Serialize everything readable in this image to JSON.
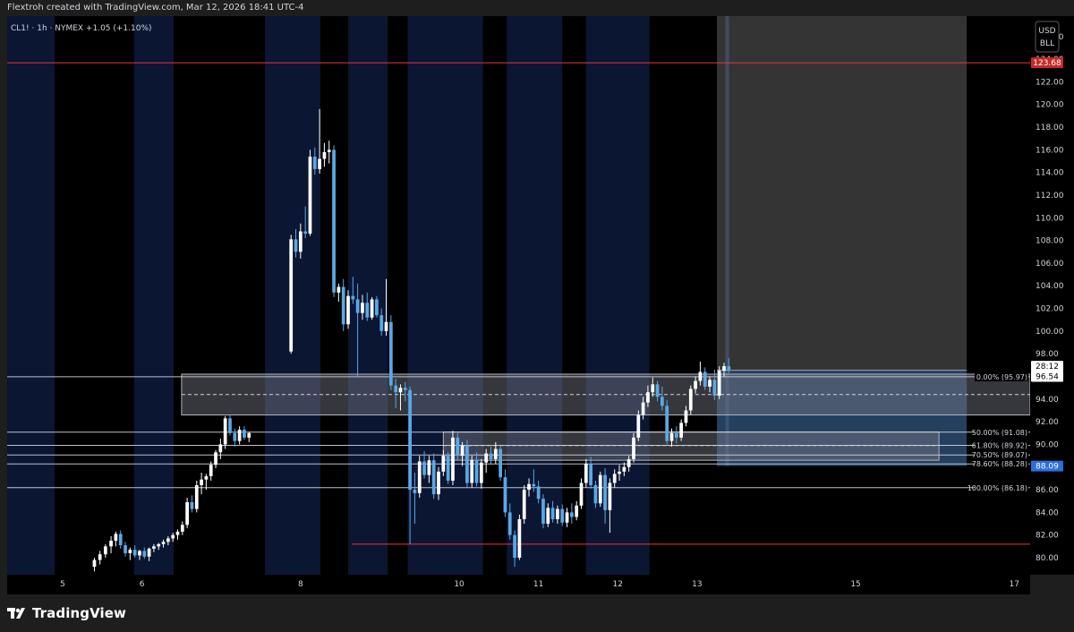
{
  "header": {
    "attribution": "Flextroh created with TradingView.com, Mar 12, 2026 18:41 UTC-4"
  },
  "legend": {
    "symbol_line": "CL1! · 1h · NYMEX +1.05 (+1.10%)"
  },
  "currency_box": {
    "currency": "USD",
    "unit": "BLL"
  },
  "brand": {
    "name": "TradingView",
    "icon": "tradingview-logo-icon"
  },
  "colors": {
    "bull": "#ffffff",
    "bear": "#5aa9e6",
    "resistance_line": "#e53935",
    "fib_line": "#d1d4dc",
    "zone_fill": "#787b86",
    "session_tint": "#0b1633",
    "projection_up": "#3a3a3a",
    "projection_down": "#2c4a6e",
    "price_tag": "#2a6fdb"
  },
  "chart_data": {
    "type": "candlestick",
    "title": "",
    "xlabel": "",
    "ylabel": "",
    "ylim": [
      78.5,
      127.8
    ],
    "x_domain": [
      4.3,
      17.2
    ],
    "x_ticks": [
      {
        "value": 5,
        "label": "5"
      },
      {
        "value": 6,
        "label": "6"
      },
      {
        "value": 8,
        "label": "8"
      },
      {
        "value": 10,
        "label": "10"
      },
      {
        "value": 11,
        "label": "11"
      },
      {
        "value": 12,
        "label": "12"
      },
      {
        "value": 13,
        "label": "13"
      },
      {
        "value": 15,
        "label": "15"
      },
      {
        "value": 17,
        "label": "17"
      }
    ],
    "y_ticks": [
      "126.00",
      "124.00",
      "122.00",
      "120.00",
      "118.00",
      "116.00",
      "114.00",
      "112.00",
      "110.00",
      "108.00",
      "106.00",
      "104.00",
      "102.00",
      "100.00",
      "98.00",
      "96.00",
      "94.00",
      "92.00",
      "90.00",
      "88.00",
      "86.00",
      "84.00",
      "82.00",
      "80.00"
    ],
    "sessions": [
      [
        4.3,
        4.9
      ],
      [
        5.9,
        6.4
      ],
      [
        7.55,
        8.25
      ],
      [
        8.6,
        9.1
      ],
      [
        9.35,
        10.3
      ],
      [
        10.6,
        11.3
      ],
      [
        11.6,
        12.4
      ]
    ],
    "candles": [
      {
        "x": 5.4,
        "o": 79.2,
        "h": 80.0,
        "l": 78.8,
        "c": 79.8
      },
      {
        "x": 5.47,
        "o": 79.8,
        "h": 80.6,
        "l": 79.4,
        "c": 80.3
      },
      {
        "x": 5.54,
        "o": 80.3,
        "h": 81.2,
        "l": 80.0,
        "c": 81.0
      },
      {
        "x": 5.61,
        "o": 81.0,
        "h": 81.9,
        "l": 80.4,
        "c": 81.5
      },
      {
        "x": 5.67,
        "o": 81.5,
        "h": 82.3,
        "l": 81.0,
        "c": 82.1
      },
      {
        "x": 5.73,
        "o": 82.1,
        "h": 82.4,
        "l": 80.8,
        "c": 81.1
      },
      {
        "x": 5.79,
        "o": 81.1,
        "h": 81.4,
        "l": 80.1,
        "c": 80.4
      },
      {
        "x": 5.85,
        "o": 80.4,
        "h": 80.9,
        "l": 79.8,
        "c": 80.7
      },
      {
        "x": 5.91,
        "o": 80.7,
        "h": 81.1,
        "l": 80.0,
        "c": 80.2
      },
      {
        "x": 5.97,
        "o": 80.2,
        "h": 80.7,
        "l": 79.8,
        "c": 80.6
      },
      {
        "x": 6.03,
        "o": 80.6,
        "h": 80.9,
        "l": 79.9,
        "c": 80.1
      },
      {
        "x": 6.09,
        "o": 80.1,
        "h": 80.9,
        "l": 79.7,
        "c": 80.8
      },
      {
        "x": 6.15,
        "o": 80.8,
        "h": 81.2,
        "l": 80.5,
        "c": 81.0
      },
      {
        "x": 6.21,
        "o": 81.0,
        "h": 81.3,
        "l": 80.7,
        "c": 81.2
      },
      {
        "x": 6.27,
        "o": 81.2,
        "h": 81.6,
        "l": 80.9,
        "c": 81.4
      },
      {
        "x": 6.33,
        "o": 81.4,
        "h": 81.9,
        "l": 81.1,
        "c": 81.7
      },
      {
        "x": 6.39,
        "o": 81.7,
        "h": 82.2,
        "l": 81.4,
        "c": 82.0
      },
      {
        "x": 6.45,
        "o": 82.0,
        "h": 82.5,
        "l": 81.6,
        "c": 82.3
      },
      {
        "x": 6.51,
        "o": 82.3,
        "h": 83.2,
        "l": 82.0,
        "c": 82.9
      },
      {
        "x": 6.57,
        "o": 82.9,
        "h": 85.3,
        "l": 82.6,
        "c": 84.9
      },
      {
        "x": 6.63,
        "o": 84.9,
        "h": 85.5,
        "l": 84.0,
        "c": 84.3
      },
      {
        "x": 6.69,
        "o": 84.3,
        "h": 86.8,
        "l": 84.0,
        "c": 86.4
      },
      {
        "x": 6.75,
        "o": 86.4,
        "h": 87.5,
        "l": 85.6,
        "c": 86.9
      },
      {
        "x": 6.81,
        "o": 86.9,
        "h": 87.4,
        "l": 86.0,
        "c": 87.2
      },
      {
        "x": 6.87,
        "o": 87.2,
        "h": 88.5,
        "l": 86.8,
        "c": 88.2
      },
      {
        "x": 6.93,
        "o": 88.2,
        "h": 89.5,
        "l": 87.9,
        "c": 89.3
      },
      {
        "x": 6.99,
        "o": 89.3,
        "h": 90.5,
        "l": 88.7,
        "c": 90.0
      },
      {
        "x": 7.05,
        "o": 90.0,
        "h": 92.5,
        "l": 89.6,
        "c": 92.3
      },
      {
        "x": 7.11,
        "o": 92.3,
        "h": 92.6,
        "l": 90.8,
        "c": 91.0
      },
      {
        "x": 7.17,
        "o": 91.0,
        "h": 91.4,
        "l": 89.8,
        "c": 90.3
      },
      {
        "x": 7.23,
        "o": 90.3,
        "h": 91.6,
        "l": 90.0,
        "c": 91.3
      },
      {
        "x": 7.29,
        "o": 91.3,
        "h": 91.6,
        "l": 90.4,
        "c": 90.6
      },
      {
        "x": 7.35,
        "o": 90.6,
        "h": 91.1,
        "l": 90.2,
        "c": 91.0
      },
      {
        "x": 7.88,
        "o": 98.2,
        "h": 108.5,
        "l": 98.0,
        "c": 108.1
      },
      {
        "x": 7.94,
        "o": 108.1,
        "h": 109.0,
        "l": 106.5,
        "c": 107.0
      },
      {
        "x": 8.0,
        "o": 107.0,
        "h": 109.5,
        "l": 106.4,
        "c": 108.8
      },
      {
        "x": 8.06,
        "o": 108.8,
        "h": 111.0,
        "l": 108.2,
        "c": 108.6
      },
      {
        "x": 8.12,
        "o": 108.6,
        "h": 116.0,
        "l": 108.4,
        "c": 115.4
      },
      {
        "x": 8.18,
        "o": 115.4,
        "h": 116.2,
        "l": 113.8,
        "c": 114.3
      },
      {
        "x": 8.24,
        "o": 114.3,
        "h": 119.6,
        "l": 113.9,
        "c": 115.2
      },
      {
        "x": 8.3,
        "o": 115.2,
        "h": 116.6,
        "l": 114.5,
        "c": 115.8
      },
      {
        "x": 8.36,
        "o": 115.8,
        "h": 116.8,
        "l": 114.8,
        "c": 116.0
      },
      {
        "x": 8.42,
        "o": 116.0,
        "h": 116.4,
        "l": 103.0,
        "c": 103.4
      },
      {
        "x": 8.48,
        "o": 103.4,
        "h": 104.2,
        "l": 102.6,
        "c": 103.9
      },
      {
        "x": 8.54,
        "o": 103.9,
        "h": 104.6,
        "l": 100.0,
        "c": 100.6
      },
      {
        "x": 8.6,
        "o": 100.6,
        "h": 103.6,
        "l": 100.2,
        "c": 103.1
      },
      {
        "x": 8.66,
        "o": 103.1,
        "h": 104.8,
        "l": 102.4,
        "c": 102.8
      },
      {
        "x": 8.72,
        "o": 102.8,
        "h": 104.2,
        "l": 96.0,
        "c": 101.6
      },
      {
        "x": 8.78,
        "o": 101.6,
        "h": 103.2,
        "l": 101.0,
        "c": 102.5
      },
      {
        "x": 8.84,
        "o": 102.5,
        "h": 103.4,
        "l": 100.9,
        "c": 101.2
      },
      {
        "x": 8.9,
        "o": 101.2,
        "h": 103.0,
        "l": 101.0,
        "c": 102.8
      },
      {
        "x": 8.96,
        "o": 102.8,
        "h": 103.1,
        "l": 101.2,
        "c": 101.4
      },
      {
        "x": 9.02,
        "o": 101.4,
        "h": 102.0,
        "l": 99.6,
        "c": 100.0
      },
      {
        "x": 9.08,
        "o": 100.0,
        "h": 104.6,
        "l": 99.6,
        "c": 100.8
      },
      {
        "x": 9.14,
        "o": 100.8,
        "h": 101.4,
        "l": 94.8,
        "c": 95.2
      },
      {
        "x": 9.2,
        "o": 95.2,
        "h": 95.8,
        "l": 93.2,
        "c": 94.6
      },
      {
        "x": 9.26,
        "o": 94.6,
        "h": 95.3,
        "l": 93.0,
        "c": 95.0
      },
      {
        "x": 9.32,
        "o": 95.0,
        "h": 95.5,
        "l": 93.8,
        "c": 94.8
      },
      {
        "x": 9.38,
        "o": 94.8,
        "h": 95.1,
        "l": 81.2,
        "c": 86.0
      },
      {
        "x": 9.44,
        "o": 86.0,
        "h": 87.5,
        "l": 83.0,
        "c": 85.7
      },
      {
        "x": 9.5,
        "o": 85.7,
        "h": 89.0,
        "l": 85.3,
        "c": 88.5
      },
      {
        "x": 9.56,
        "o": 88.5,
        "h": 89.4,
        "l": 87.0,
        "c": 87.3
      },
      {
        "x": 9.62,
        "o": 87.3,
        "h": 89.0,
        "l": 86.6,
        "c": 88.6
      },
      {
        "x": 9.68,
        "o": 88.6,
        "h": 89.2,
        "l": 85.2,
        "c": 85.6
      },
      {
        "x": 9.74,
        "o": 85.6,
        "h": 88.0,
        "l": 85.1,
        "c": 87.6
      },
      {
        "x": 9.8,
        "o": 87.6,
        "h": 89.5,
        "l": 87.2,
        "c": 89.0
      },
      {
        "x": 9.86,
        "o": 89.0,
        "h": 89.3,
        "l": 86.5,
        "c": 86.8
      },
      {
        "x": 9.92,
        "o": 86.8,
        "h": 91.2,
        "l": 86.4,
        "c": 90.6
      },
      {
        "x": 9.98,
        "o": 90.6,
        "h": 91.0,
        "l": 88.6,
        "c": 89.0
      },
      {
        "x": 10.04,
        "o": 89.0,
        "h": 90.2,
        "l": 88.1,
        "c": 89.9
      },
      {
        "x": 10.1,
        "o": 89.9,
        "h": 90.4,
        "l": 86.2,
        "c": 86.6
      },
      {
        "x": 10.16,
        "o": 86.6,
        "h": 89.0,
        "l": 86.2,
        "c": 88.6
      },
      {
        "x": 10.22,
        "o": 88.6,
        "h": 89.3,
        "l": 86.3,
        "c": 86.6
      },
      {
        "x": 10.28,
        "o": 86.6,
        "h": 88.7,
        "l": 86.1,
        "c": 88.4
      },
      {
        "x": 10.34,
        "o": 88.4,
        "h": 89.6,
        "l": 87.5,
        "c": 89.2
      },
      {
        "x": 10.4,
        "o": 89.2,
        "h": 89.8,
        "l": 88.2,
        "c": 88.7
      },
      {
        "x": 10.46,
        "o": 88.7,
        "h": 90.2,
        "l": 88.3,
        "c": 89.6
      },
      {
        "x": 10.52,
        "o": 89.6,
        "h": 90.0,
        "l": 86.8,
        "c": 87.1
      },
      {
        "x": 10.58,
        "o": 87.1,
        "h": 87.8,
        "l": 83.6,
        "c": 84.0
      },
      {
        "x": 10.64,
        "o": 84.0,
        "h": 84.8,
        "l": 81.6,
        "c": 82.0
      },
      {
        "x": 10.7,
        "o": 82.0,
        "h": 82.4,
        "l": 79.2,
        "c": 80.0
      },
      {
        "x": 10.76,
        "o": 80.0,
        "h": 83.8,
        "l": 79.8,
        "c": 83.4
      },
      {
        "x": 10.82,
        "o": 83.4,
        "h": 86.4,
        "l": 83.0,
        "c": 86.0
      },
      {
        "x": 10.88,
        "o": 86.0,
        "h": 87.0,
        "l": 85.4,
        "c": 86.5
      },
      {
        "x": 10.94,
        "o": 86.5,
        "h": 87.8,
        "l": 85.8,
        "c": 86.3
      },
      {
        "x": 11.0,
        "o": 86.3,
        "h": 86.8,
        "l": 84.8,
        "c": 85.2
      },
      {
        "x": 11.06,
        "o": 85.2,
        "h": 85.6,
        "l": 82.6,
        "c": 83.0
      },
      {
        "x": 11.12,
        "o": 83.0,
        "h": 84.8,
        "l": 82.7,
        "c": 84.4
      },
      {
        "x": 11.18,
        "o": 84.4,
        "h": 85.0,
        "l": 83.1,
        "c": 83.4
      },
      {
        "x": 11.24,
        "o": 83.4,
        "h": 84.6,
        "l": 83.0,
        "c": 84.3
      },
      {
        "x": 11.3,
        "o": 84.3,
        "h": 84.7,
        "l": 82.8,
        "c": 83.1
      },
      {
        "x": 11.36,
        "o": 83.1,
        "h": 84.4,
        "l": 82.7,
        "c": 84.0
      },
      {
        "x": 11.42,
        "o": 84.0,
        "h": 84.8,
        "l": 83.0,
        "c": 83.6
      },
      {
        "x": 11.48,
        "o": 83.6,
        "h": 85.0,
        "l": 83.3,
        "c": 84.6
      },
      {
        "x": 11.54,
        "o": 84.6,
        "h": 87.0,
        "l": 84.3,
        "c": 86.6
      },
      {
        "x": 11.6,
        "o": 86.6,
        "h": 88.7,
        "l": 86.2,
        "c": 88.3
      },
      {
        "x": 11.66,
        "o": 88.3,
        "h": 88.9,
        "l": 86.1,
        "c": 86.4
      },
      {
        "x": 11.72,
        "o": 86.4,
        "h": 86.8,
        "l": 84.4,
        "c": 84.8
      },
      {
        "x": 11.78,
        "o": 84.8,
        "h": 87.6,
        "l": 84.5,
        "c": 87.3
      },
      {
        "x": 11.84,
        "o": 87.3,
        "h": 87.9,
        "l": 83.0,
        "c": 84.2
      },
      {
        "x": 11.9,
        "o": 84.2,
        "h": 87.0,
        "l": 82.2,
        "c": 86.6
      },
      {
        "x": 11.96,
        "o": 86.6,
        "h": 87.8,
        "l": 86.2,
        "c": 87.4
      },
      {
        "x": 12.02,
        "o": 87.4,
        "h": 88.2,
        "l": 86.8,
        "c": 87.6
      },
      {
        "x": 12.08,
        "o": 87.6,
        "h": 88.4,
        "l": 87.2,
        "c": 88.0
      },
      {
        "x": 12.14,
        "o": 88.0,
        "h": 89.0,
        "l": 87.6,
        "c": 88.7
      },
      {
        "x": 12.2,
        "o": 88.7,
        "h": 91.0,
        "l": 88.4,
        "c": 90.6
      },
      {
        "x": 12.26,
        "o": 90.6,
        "h": 93.0,
        "l": 90.3,
        "c": 92.6
      },
      {
        "x": 12.32,
        "o": 92.6,
        "h": 94.2,
        "l": 92.2,
        "c": 93.7
      },
      {
        "x": 12.38,
        "o": 93.7,
        "h": 95.2,
        "l": 93.3,
        "c": 94.6
      },
      {
        "x": 12.44,
        "o": 94.6,
        "h": 95.9,
        "l": 94.2,
        "c": 95.3
      },
      {
        "x": 12.5,
        "o": 95.3,
        "h": 95.6,
        "l": 93.8,
        "c": 94.2
      },
      {
        "x": 12.56,
        "o": 94.2,
        "h": 95.1,
        "l": 93.0,
        "c": 93.4
      },
      {
        "x": 12.62,
        "o": 93.4,
        "h": 93.9,
        "l": 90.0,
        "c": 90.3
      },
      {
        "x": 12.68,
        "o": 90.3,
        "h": 91.4,
        "l": 89.8,
        "c": 91.0
      },
      {
        "x": 12.74,
        "o": 91.0,
        "h": 91.6,
        "l": 90.1,
        "c": 90.6
      },
      {
        "x": 12.8,
        "o": 90.6,
        "h": 92.2,
        "l": 90.3,
        "c": 91.9
      },
      {
        "x": 12.86,
        "o": 91.9,
        "h": 93.4,
        "l": 91.6,
        "c": 93.0
      },
      {
        "x": 12.92,
        "o": 93.0,
        "h": 95.2,
        "l": 92.6,
        "c": 94.9
      },
      {
        "x": 12.98,
        "o": 94.9,
        "h": 96.0,
        "l": 94.5,
        "c": 95.6
      },
      {
        "x": 13.04,
        "o": 95.6,
        "h": 97.3,
        "l": 95.2,
        "c": 96.4
      },
      {
        "x": 13.1,
        "o": 96.4,
        "h": 96.8,
        "l": 94.8,
        "c": 95.1
      },
      {
        "x": 13.16,
        "o": 95.1,
        "h": 96.0,
        "l": 94.6,
        "c": 95.7
      },
      {
        "x": 13.22,
        "o": 95.7,
        "h": 96.6,
        "l": 93.9,
        "c": 94.3
      },
      {
        "x": 13.28,
        "o": 94.3,
        "h": 96.9,
        "l": 94.0,
        "c": 96.5
      },
      {
        "x": 13.34,
        "o": 96.5,
        "h": 97.2,
        "l": 96.0,
        "c": 96.9
      },
      {
        "x": 13.4,
        "o": 96.9,
        "h": 97.6,
        "l": 96.3,
        "c": 96.54
      }
    ],
    "horizontal_levels": [
      {
        "price": 123.68,
        "color": "#e53935",
        "x_start": 4.3,
        "x_end": 17.2
      },
      {
        "price": 81.2,
        "color": "#e53935",
        "x_start": 8.65,
        "x_end": 17.2
      }
    ],
    "fib_levels": [
      {
        "label": "0.00% (95.97)",
        "price": 95.97
      },
      {
        "label": "50.00% (91.08)",
        "price": 91.08
      },
      {
        "label": "61.80% (89.92)",
        "price": 89.92
      },
      {
        "label": "70.50% (89.07)",
        "price": 89.07
      },
      {
        "label": "78.60% (88.28)",
        "price": 88.28
      },
      {
        "label": "100.00% (86.18)",
        "price": 86.18
      }
    ],
    "zones": [
      {
        "x_start": 6.5,
        "x_end": 17.2,
        "y_low": 92.6,
        "y_high": 96.2,
        "mid": 94.4
      },
      {
        "x_start": 9.8,
        "x_end": 16.05,
        "y_low": 88.6,
        "y_high": 91.1,
        "mid": 89.9
      }
    ],
    "projection": {
      "x_start": 13.25,
      "x_end": 16.4,
      "target_high": 127.8,
      "entry": 96.54,
      "stop": 88.09,
      "vline_x": 13.38
    },
    "price_tags": [
      {
        "label": "123.68",
        "price": 123.68,
        "bg": "#c62828"
      },
      {
        "label": "28:12",
        "price": 96.9,
        "bg": "#ffffff"
      },
      {
        "label": "96.54",
        "price": 96.0,
        "bg": "#ffffff"
      },
      {
        "label": "88.09",
        "price": 88.09,
        "bg": "#2a6fdb"
      }
    ]
  }
}
